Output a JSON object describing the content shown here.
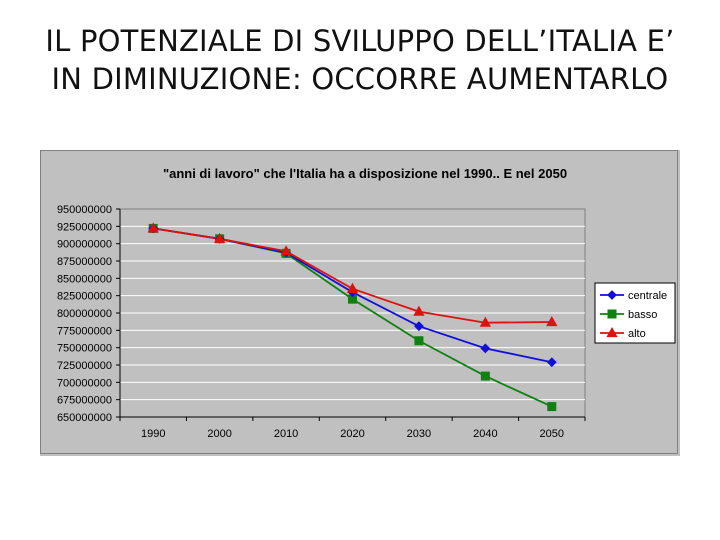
{
  "slide": {
    "title_line1": "IL POTENZIALE DI SVILUPPO DELL’ITALIA E’",
    "title_line2": "IN DIMINUZIONE: OCCORRE AUMENTARLO"
  },
  "chart_data": {
    "type": "line",
    "title": "\"anni di lavoro\" che l'Italia ha a disposizione nel 1990.. E nel  2050",
    "xlabel": "",
    "ylabel": "",
    "categories": [
      "1990",
      "2000",
      "2010",
      "2020",
      "2030",
      "2040",
      "2050"
    ],
    "y_ticks": [
      "950000000",
      "925000000",
      "900000000",
      "875000000",
      "850000000",
      "825000000",
      "800000000",
      "775000000",
      "750000000",
      "725000000",
      "700000000",
      "675000000",
      "650000000"
    ],
    "ylim": [
      650000000,
      950000000
    ],
    "grid": true,
    "legend_position": "right",
    "series": [
      {
        "name": "centrale",
        "color": "#1010d8",
        "marker": "diamond",
        "values": [
          922000000,
          907000000,
          887000000,
          830000000,
          781000000,
          749000000,
          729000000
        ]
      },
      {
        "name": "basso",
        "color": "#108010",
        "marker": "square",
        "values": [
          922000000,
          907000000,
          886000000,
          820000000,
          760000000,
          709000000,
          665000000
        ]
      },
      {
        "name": "alto",
        "color": "#e01010",
        "marker": "triangle",
        "values": [
          922000000,
          907000000,
          889000000,
          835000000,
          802000000,
          786000000,
          787000000
        ]
      }
    ],
    "colors": {
      "plot_background": "#c0c0c0",
      "chart_background": "#c0c0c0",
      "legend_background": "#ffffff"
    }
  }
}
